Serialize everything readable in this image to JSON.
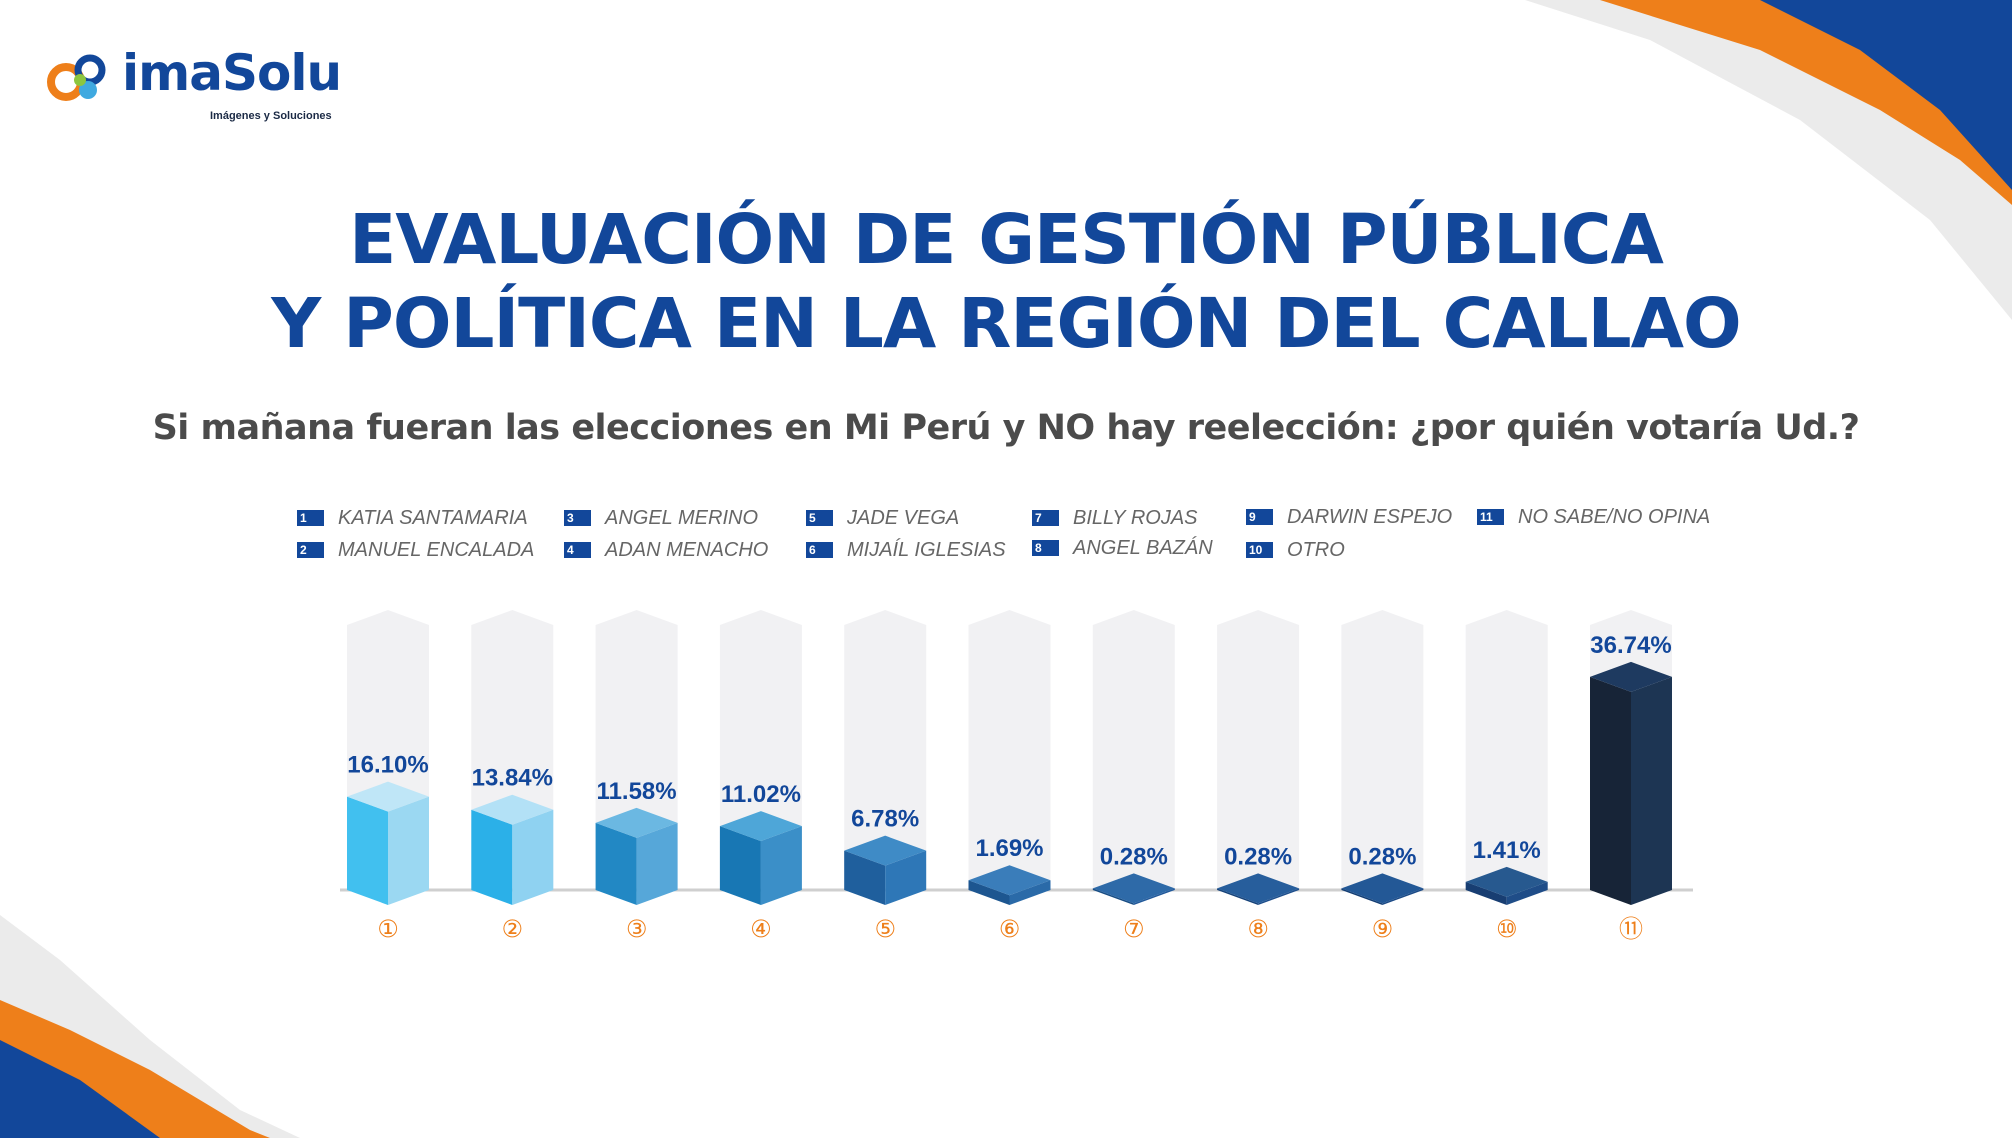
{
  "brand": {
    "name": "imaSolu",
    "tagline": "Imágenes y Soluciones"
  },
  "title_lines": [
    "EVALUACIÓN DE GESTIÓN PÚBLICA",
    "Y POLÍTICA EN LA REGIÓN DEL CALLAO"
  ],
  "subtitle": "Si mañana fueran las elecciones en Mi Perú y NO hay reelección: ¿por quién votaría Ud.?",
  "legend": [
    {
      "num": "1",
      "label": "KATIA SANTAMARIA"
    },
    {
      "num": "2",
      "label": "MANUEL ENCALADA"
    },
    {
      "num": "3",
      "label": "ANGEL MERINO"
    },
    {
      "num": "4",
      "label": "ADAN MENACHO"
    },
    {
      "num": "5",
      "label": "JADE VEGA"
    },
    {
      "num": "6",
      "label": "MIJAÍL IGLESIAS"
    },
    {
      "num": "7",
      "label": "BILLY ROJAS"
    },
    {
      "num": "8",
      "label": "ANGEL BAZÁN"
    },
    {
      "num": "9",
      "label": "DARWIN ESPEJO"
    },
    {
      "num": "10",
      "label": "OTRO"
    },
    {
      "num": "11",
      "label": "NO SABE/NO OPINA"
    }
  ],
  "colors": {
    "primary": "#12479a",
    "orange": "#ee7f1a",
    "dark_navy": "#1b2238",
    "track": "#f1f1f3",
    "bar_fronts": [
      "#41c0ef",
      "#2bb0e8",
      "#2288c4",
      "#1877b4",
      "#1f5f9d",
      "#1d5690",
      "#184d84",
      "#16437a",
      "#143e74",
      "#183e72",
      "#172437"
    ],
    "bar_sides": [
      "#9bd8f2",
      "#8fd2f1",
      "#56a7d9",
      "#3b8fc8",
      "#2e77b7",
      "#2a6aa8",
      "#22599a",
      "#1e4f8c",
      "#1b4a86",
      "#1f4d88",
      "#1d3553"
    ],
    "bar_tops": [
      "#bfe6f7",
      "#b3e1f6",
      "#6bb8e2",
      "#4ea6d8",
      "#3f8bc6",
      "#3a7dba",
      "#2e6aa8",
      "#275e9c",
      "#235896",
      "#27598f",
      "#1e3a60"
    ]
  },
  "chart_data": {
    "type": "bar",
    "categories": [
      "①",
      "②",
      "③",
      "④",
      "⑤",
      "⑥",
      "⑦",
      "⑧",
      "⑨",
      "⑩",
      "⑪"
    ],
    "values": [
      16.1,
      13.84,
      11.58,
      11.02,
      6.78,
      1.69,
      0.28,
      0.28,
      0.28,
      1.41,
      36.74
    ],
    "value_labels": [
      "16.10%",
      "13.84%",
      "11.58%",
      "11.02%",
      "6.78%",
      "1.69%",
      "0.28%",
      "0.28%",
      "0.28%",
      "1.41%",
      "36.74%"
    ],
    "ylim": [
      0,
      50
    ],
    "style": "3d-columns"
  }
}
